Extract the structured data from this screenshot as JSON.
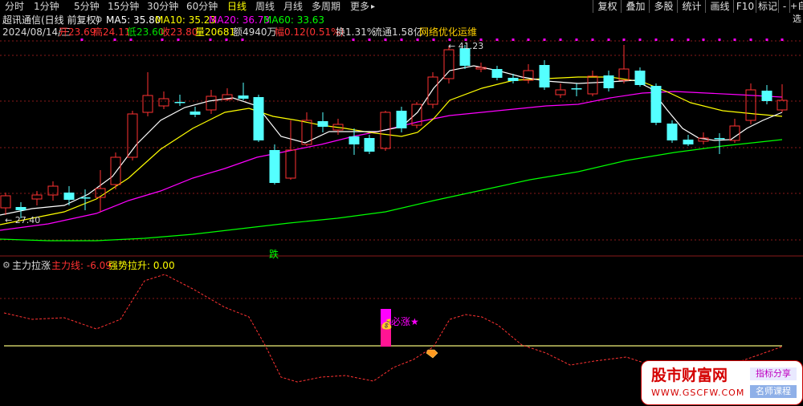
{
  "toolbar": {
    "periods": [
      "分时",
      "1分钟",
      "5分钟",
      "15分钟",
      "30分钟",
      "60分钟",
      "日线",
      "周线",
      "月线",
      "多周期",
      "更多"
    ],
    "active_period": "日线",
    "more_arrow": "▸",
    "right_buttons": [
      "复权",
      "叠加",
      "多股",
      "统计",
      "画线",
      "F10",
      "标记",
      "-",
      "+自选"
    ]
  },
  "stock": {
    "title": "超讯通信(日线 前复权)",
    "ma5": "MA5: 35.80",
    "ma10": "MA10: 35.23",
    "ma20": "MA20: 36.73",
    "ma60": "MA60: 33.63"
  },
  "quote": {
    "date": "2024/08/14/三",
    "open": "开23.69",
    "high": "高24.11",
    "low": "低23.60",
    "close": "收23.80",
    "volume": "量20681",
    "amount": "额4940万",
    "change": "幅0.12(0.51%)",
    "turnover": "换1.31%",
    "float_cap": "流通1.58亿",
    "concept": "网络优化运维"
  },
  "annotations": {
    "high_price": "← 41.23",
    "low_price": "← 27.40",
    "fall_tag": "跌"
  },
  "indicator": {
    "name": "主力拉涨",
    "main_line": "主力线: -6.09",
    "strong_rise": "强势拉升: 0.00",
    "signal_text": "必涨★"
  },
  "watermark": {
    "site_name": "股市财富网",
    "url": "WWW.GSCFW.COM",
    "tag1": "指标分享",
    "tag2": "名师课程"
  },
  "colors": {
    "up": "#ff3232",
    "down": "#54ffff",
    "ma5": "#ffffff",
    "ma10": "#ffff00",
    "ma20": "#ff00ff",
    "ma60": "#00ff00",
    "main_line": "#ff3232",
    "zero_line": "#c8c864"
  },
  "chart_data": {
    "type": "candlestick",
    "price_range_visible": [
      27.4,
      41.23
    ],
    "indicator_main_last": -6.09,
    "indicator_strong_last": 0.0
  }
}
